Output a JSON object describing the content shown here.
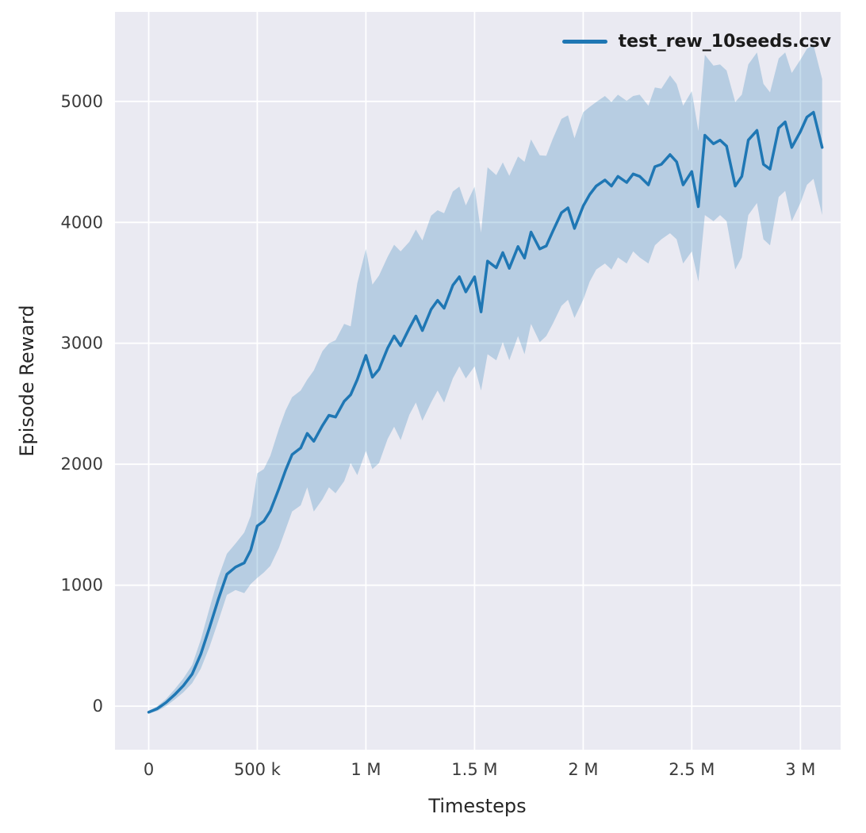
{
  "chart_data": {
    "type": "line",
    "title": "",
    "xlabel": "Timesteps",
    "ylabel": "Episode Reward",
    "grid": true,
    "legend_position": "upper right",
    "legend": [
      {
        "label": "test_rew_10seeds.csv",
        "color": "#1f77b4"
      }
    ],
    "plot_bg": "#eaeaf2",
    "grid_color": "#ffffff",
    "line_color": "#1f77b4",
    "band_color": "#1f77b4",
    "band_opacity": 0.25,
    "x_units": "timesteps (values in millions)",
    "xlim": [
      -0.155,
      3.185
    ],
    "ylim": [
      -360,
      5740
    ],
    "xticks": [
      {
        "v": 0,
        "label": "0"
      },
      {
        "v": 0.5,
        "label": "500 k"
      },
      {
        "v": 1,
        "label": "1 M"
      },
      {
        "v": 1.5,
        "label": "1.5 M"
      },
      {
        "v": 2,
        "label": "2 M"
      },
      {
        "v": 2.5,
        "label": "2.5 M"
      },
      {
        "v": 3,
        "label": "3 M"
      }
    ],
    "yticks": [
      {
        "v": 0,
        "label": "0"
      },
      {
        "v": 1000,
        "label": "1000"
      },
      {
        "v": 2000,
        "label": "2000"
      },
      {
        "v": 3000,
        "label": "3000"
      },
      {
        "v": 4000,
        "label": "4000"
      },
      {
        "v": 5000,
        "label": "5000"
      }
    ],
    "series": [
      {
        "name": "test_rew_10seeds.csv",
        "x": [
          0,
          0.04,
          0.08,
          0.12,
          0.16,
          0.2,
          0.24,
          0.28,
          0.32,
          0.36,
          0.4,
          0.44,
          0.47,
          0.5,
          0.53,
          0.56,
          0.6,
          0.63,
          0.66,
          0.7,
          0.73,
          0.76,
          0.8,
          0.83,
          0.86,
          0.9,
          0.93,
          0.96,
          1.0,
          1.03,
          1.06,
          1.1,
          1.13,
          1.16,
          1.2,
          1.23,
          1.26,
          1.3,
          1.33,
          1.36,
          1.4,
          1.43,
          1.46,
          1.5,
          1.53,
          1.56,
          1.6,
          1.63,
          1.66,
          1.7,
          1.73,
          1.76,
          1.8,
          1.83,
          1.86,
          1.9,
          1.93,
          1.96,
          2.0,
          2.03,
          2.06,
          2.1,
          2.13,
          2.16,
          2.2,
          2.23,
          2.26,
          2.3,
          2.33,
          2.36,
          2.4,
          2.43,
          2.46,
          2.5,
          2.53,
          2.56,
          2.6,
          2.63,
          2.66,
          2.7,
          2.73,
          2.76,
          2.8,
          2.83,
          2.86,
          2.9,
          2.93,
          2.96,
          3.0,
          3.03,
          3.06,
          3.1
        ],
        "mean": [
          -50,
          -20,
          30,
          95,
          170,
          265,
          430,
          650,
          880,
          1090,
          1150,
          1185,
          1290,
          1490,
          1530,
          1615,
          1800,
          1950,
          2080,
          2135,
          2255,
          2190,
          2320,
          2405,
          2390,
          2520,
          2575,
          2700,
          2900,
          2720,
          2785,
          2960,
          3060,
          2980,
          3125,
          3225,
          3105,
          3280,
          3355,
          3290,
          3480,
          3550,
          3425,
          3550,
          3260,
          3680,
          3625,
          3750,
          3620,
          3800,
          3705,
          3920,
          3780,
          3805,
          3925,
          4080,
          4120,
          3950,
          4135,
          4230,
          4300,
          4350,
          4300,
          4380,
          4330,
          4400,
          4380,
          4310,
          4460,
          4480,
          4560,
          4500,
          4310,
          4420,
          4130,
          4720,
          4650,
          4680,
          4630,
          4300,
          4380,
          4680,
          4760,
          4480,
          4440,
          4780,
          4830,
          4620,
          4750,
          4870,
          4910,
          4620
        ],
        "lower": [
          -60,
          -40,
          0,
          55,
          115,
          190,
          310,
          490,
          700,
          920,
          960,
          935,
          1010,
          1060,
          1105,
          1160,
          1310,
          1460,
          1610,
          1660,
          1810,
          1610,
          1710,
          1810,
          1760,
          1860,
          2010,
          1910,
          2110,
          1960,
          2010,
          2210,
          2310,
          2200,
          2410,
          2510,
          2360,
          2510,
          2610,
          2510,
          2710,
          2810,
          2710,
          2810,
          2610,
          2910,
          2860,
          3010,
          2860,
          3060,
          2910,
          3160,
          3010,
          3060,
          3160,
          3310,
          3360,
          3210,
          3360,
          3510,
          3610,
          3660,
          3610,
          3710,
          3660,
          3760,
          3710,
          3660,
          3810,
          3860,
          3910,
          3860,
          3660,
          3760,
          3510,
          4060,
          4010,
          4060,
          4010,
          3610,
          3710,
          4060,
          4160,
          3860,
          3810,
          4210,
          4260,
          4010,
          4160,
          4310,
          4360,
          4060
        ],
        "upper": [
          -40,
          0,
          60,
          140,
          230,
          340,
          550,
          810,
          1060,
          1260,
          1345,
          1435,
          1575,
          1925,
          1960,
          2070,
          2295,
          2445,
          2555,
          2610,
          2700,
          2775,
          2935,
          3000,
          3025,
          3160,
          3140,
          3495,
          3780,
          3485,
          3560,
          3715,
          3815,
          3760,
          3840,
          3940,
          3850,
          4055,
          4100,
          4075,
          4255,
          4295,
          4140,
          4295,
          3915,
          4455,
          4390,
          4495,
          4385,
          4545,
          4500,
          4685,
          4555,
          4550,
          4690,
          4855,
          4885,
          4695,
          4910,
          4955,
          4995,
          5045,
          4995,
          5055,
          5005,
          5045,
          5055,
          4965,
          5115,
          5105,
          5215,
          5145,
          4965,
          5085,
          4755,
          5385,
          5295,
          5305,
          5255,
          4995,
          5055,
          5305,
          5405,
          5145,
          5075,
          5355,
          5405,
          5235,
          5345,
          5435,
          5465,
          5185
        ]
      }
    ]
  }
}
